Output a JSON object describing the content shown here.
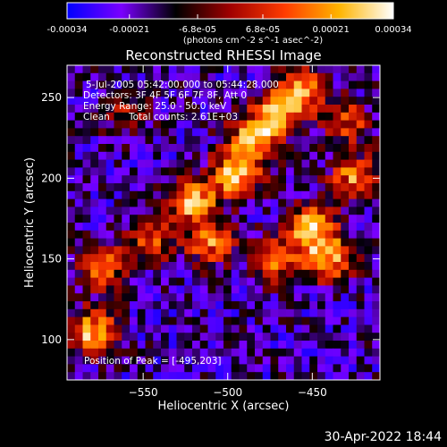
{
  "chart_data": {
    "type": "heatmap",
    "title": "Reconstructed RHESSI Image",
    "colorbar": {
      "tick_labels": [
        "-0.00034",
        "-0.00021",
        "-6.8e-05",
        "6.8e-05",
        "0.00021",
        "0.00034"
      ],
      "tick_values": [
        -0.00034,
        -0.00021,
        -6.8e-05,
        6.8e-05,
        0.00021,
        0.00034
      ],
      "range": [
        -0.00034,
        0.00034
      ],
      "unit_label": "(photons cm^-2 s^-1 asec^-2)",
      "colormap": [
        "#0000ff",
        "#7a00ff",
        "#000000",
        "#a00000",
        "#ff3c00",
        "#ffb400",
        "#ffffff"
      ]
    },
    "xlabel": "Heliocentric X (arcsec)",
    "ylabel": "Heliocentric Y (arcsec)",
    "xlim": [
      -595,
      -410
    ],
    "ylim": [
      75,
      270
    ],
    "xticks": [
      -550,
      -500,
      -450
    ],
    "yticks": [
      100,
      150,
      200,
      250
    ],
    "annotations": {
      "line1": "5-Jul-2005 05:42:00.000 to 05:44:28.000",
      "line2": "Detectors: 3F 4F 5F 6F 7F 8F, Att 0",
      "line3": "Energy Range: 25.0 - 50.0 keV",
      "line4_a": "Clean",
      "line4_b": "Total counts: 2.61E+03",
      "peak": "Position of Peak = [-495,203]"
    },
    "bright_sources": [
      {
        "x": -580,
        "y": 105,
        "level": 0.9
      },
      {
        "x": -575,
        "y": 145,
        "level": 0.7
      },
      {
        "x": -545,
        "y": 160,
        "level": 0.6
      },
      {
        "x": -520,
        "y": 185,
        "level": 0.9
      },
      {
        "x": -495,
        "y": 203,
        "level": 1.0
      },
      {
        "x": -485,
        "y": 225,
        "level": 0.85
      },
      {
        "x": -470,
        "y": 240,
        "level": 0.8
      },
      {
        "x": -455,
        "y": 255,
        "level": 0.75
      },
      {
        "x": -450,
        "y": 170,
        "level": 0.95
      },
      {
        "x": -440,
        "y": 150,
        "level": 0.8
      },
      {
        "x": -425,
        "y": 200,
        "level": 0.75
      },
      {
        "x": -470,
        "y": 150,
        "level": 0.7
      },
      {
        "x": -510,
        "y": 160,
        "level": 0.7
      },
      {
        "x": -430,
        "y": 235,
        "level": 0.6
      },
      {
        "x": -560,
        "y": 240,
        "level": 0.35
      }
    ]
  },
  "timestamp": "30-Apr-2022 18:44"
}
